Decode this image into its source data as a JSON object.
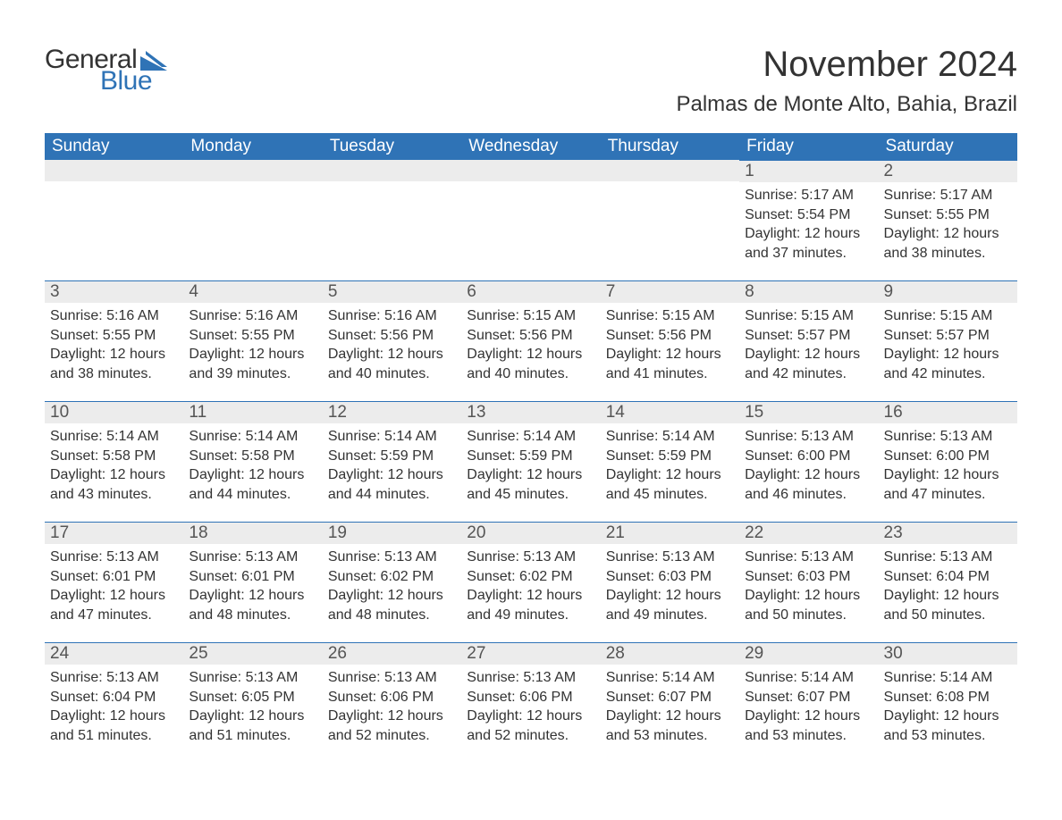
{
  "logo": {
    "text1": "General",
    "text2": "Blue",
    "accent_color": "#2f73b6"
  },
  "title": "November 2024",
  "location": "Palmas de Monte Alto, Bahia, Brazil",
  "colors": {
    "header_bg": "#2f73b6",
    "header_text": "#ffffff",
    "daynum_bg": "#ececec",
    "daynum_border": "#2f73b6",
    "body_text": "#333333"
  },
  "weekdays": [
    "Sunday",
    "Monday",
    "Tuesday",
    "Wednesday",
    "Thursday",
    "Friday",
    "Saturday"
  ],
  "weeks": [
    [
      {
        "day": "",
        "lines": []
      },
      {
        "day": "",
        "lines": []
      },
      {
        "day": "",
        "lines": []
      },
      {
        "day": "",
        "lines": []
      },
      {
        "day": "",
        "lines": []
      },
      {
        "day": "1",
        "lines": [
          "Sunrise: 5:17 AM",
          "Sunset: 5:54 PM",
          "Daylight: 12 hours and 37 minutes."
        ]
      },
      {
        "day": "2",
        "lines": [
          "Sunrise: 5:17 AM",
          "Sunset: 5:55 PM",
          "Daylight: 12 hours and 38 minutes."
        ]
      }
    ],
    [
      {
        "day": "3",
        "lines": [
          "Sunrise: 5:16 AM",
          "Sunset: 5:55 PM",
          "Daylight: 12 hours and 38 minutes."
        ]
      },
      {
        "day": "4",
        "lines": [
          "Sunrise: 5:16 AM",
          "Sunset: 5:55 PM",
          "Daylight: 12 hours and 39 minutes."
        ]
      },
      {
        "day": "5",
        "lines": [
          "Sunrise: 5:16 AM",
          "Sunset: 5:56 PM",
          "Daylight: 12 hours and 40 minutes."
        ]
      },
      {
        "day": "6",
        "lines": [
          "Sunrise: 5:15 AM",
          "Sunset: 5:56 PM",
          "Daylight: 12 hours and 40 minutes."
        ]
      },
      {
        "day": "7",
        "lines": [
          "Sunrise: 5:15 AM",
          "Sunset: 5:56 PM",
          "Daylight: 12 hours and 41 minutes."
        ]
      },
      {
        "day": "8",
        "lines": [
          "Sunrise: 5:15 AM",
          "Sunset: 5:57 PM",
          "Daylight: 12 hours and 42 minutes."
        ]
      },
      {
        "day": "9",
        "lines": [
          "Sunrise: 5:15 AM",
          "Sunset: 5:57 PM",
          "Daylight: 12 hours and 42 minutes."
        ]
      }
    ],
    [
      {
        "day": "10",
        "lines": [
          "Sunrise: 5:14 AM",
          "Sunset: 5:58 PM",
          "Daylight: 12 hours and 43 minutes."
        ]
      },
      {
        "day": "11",
        "lines": [
          "Sunrise: 5:14 AM",
          "Sunset: 5:58 PM",
          "Daylight: 12 hours and 44 minutes."
        ]
      },
      {
        "day": "12",
        "lines": [
          "Sunrise: 5:14 AM",
          "Sunset: 5:59 PM",
          "Daylight: 12 hours and 44 minutes."
        ]
      },
      {
        "day": "13",
        "lines": [
          "Sunrise: 5:14 AM",
          "Sunset: 5:59 PM",
          "Daylight: 12 hours and 45 minutes."
        ]
      },
      {
        "day": "14",
        "lines": [
          "Sunrise: 5:14 AM",
          "Sunset: 5:59 PM",
          "Daylight: 12 hours and 45 minutes."
        ]
      },
      {
        "day": "15",
        "lines": [
          "Sunrise: 5:13 AM",
          "Sunset: 6:00 PM",
          "Daylight: 12 hours and 46 minutes."
        ]
      },
      {
        "day": "16",
        "lines": [
          "Sunrise: 5:13 AM",
          "Sunset: 6:00 PM",
          "Daylight: 12 hours and 47 minutes."
        ]
      }
    ],
    [
      {
        "day": "17",
        "lines": [
          "Sunrise: 5:13 AM",
          "Sunset: 6:01 PM",
          "Daylight: 12 hours and 47 minutes."
        ]
      },
      {
        "day": "18",
        "lines": [
          "Sunrise: 5:13 AM",
          "Sunset: 6:01 PM",
          "Daylight: 12 hours and 48 minutes."
        ]
      },
      {
        "day": "19",
        "lines": [
          "Sunrise: 5:13 AM",
          "Sunset: 6:02 PM",
          "Daylight: 12 hours and 48 minutes."
        ]
      },
      {
        "day": "20",
        "lines": [
          "Sunrise: 5:13 AM",
          "Sunset: 6:02 PM",
          "Daylight: 12 hours and 49 minutes."
        ]
      },
      {
        "day": "21",
        "lines": [
          "Sunrise: 5:13 AM",
          "Sunset: 6:03 PM",
          "Daylight: 12 hours and 49 minutes."
        ]
      },
      {
        "day": "22",
        "lines": [
          "Sunrise: 5:13 AM",
          "Sunset: 6:03 PM",
          "Daylight: 12 hours and 50 minutes."
        ]
      },
      {
        "day": "23",
        "lines": [
          "Sunrise: 5:13 AM",
          "Sunset: 6:04 PM",
          "Daylight: 12 hours and 50 minutes."
        ]
      }
    ],
    [
      {
        "day": "24",
        "lines": [
          "Sunrise: 5:13 AM",
          "Sunset: 6:04 PM",
          "Daylight: 12 hours and 51 minutes."
        ]
      },
      {
        "day": "25",
        "lines": [
          "Sunrise: 5:13 AM",
          "Sunset: 6:05 PM",
          "Daylight: 12 hours and 51 minutes."
        ]
      },
      {
        "day": "26",
        "lines": [
          "Sunrise: 5:13 AM",
          "Sunset: 6:06 PM",
          "Daylight: 12 hours and 52 minutes."
        ]
      },
      {
        "day": "27",
        "lines": [
          "Sunrise: 5:13 AM",
          "Sunset: 6:06 PM",
          "Daylight: 12 hours and 52 minutes."
        ]
      },
      {
        "day": "28",
        "lines": [
          "Sunrise: 5:14 AM",
          "Sunset: 6:07 PM",
          "Daylight: 12 hours and 53 minutes."
        ]
      },
      {
        "day": "29",
        "lines": [
          "Sunrise: 5:14 AM",
          "Sunset: 6:07 PM",
          "Daylight: 12 hours and 53 minutes."
        ]
      },
      {
        "day": "30",
        "lines": [
          "Sunrise: 5:14 AM",
          "Sunset: 6:08 PM",
          "Daylight: 12 hours and 53 minutes."
        ]
      }
    ]
  ]
}
